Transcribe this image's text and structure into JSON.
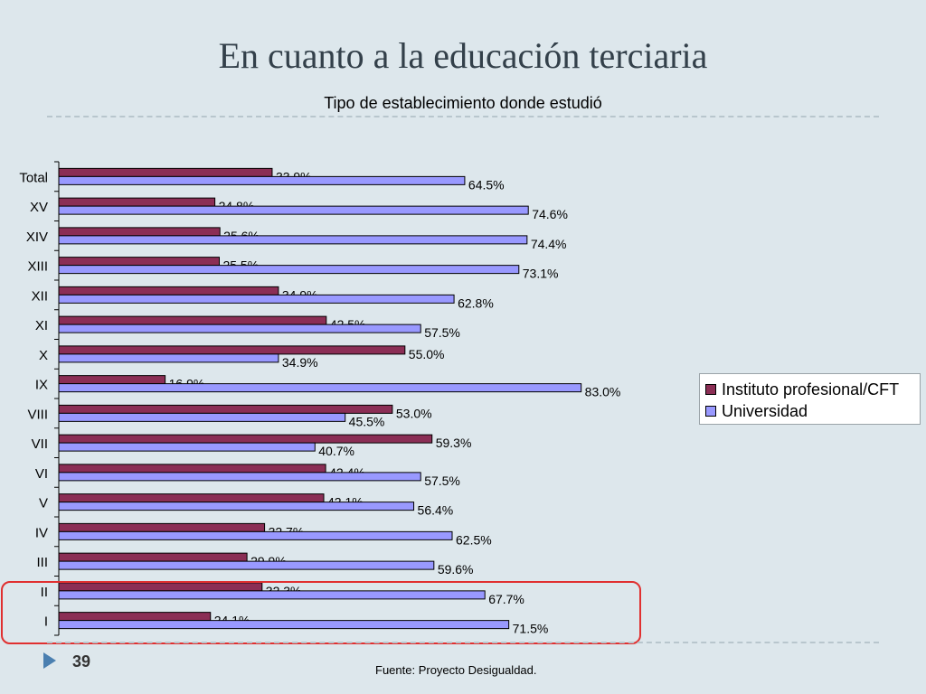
{
  "slide": {
    "title": "En cuanto a la educación terciaria",
    "page_number": "39",
    "source_note": "Fuente: Proyecto Desigualdad."
  },
  "colors": {
    "background": "#dde7ec",
    "series_1": "#8b2e55",
    "series_2": "#9999ff",
    "highlight": "#e03030"
  },
  "chart_data": {
    "type": "bar",
    "orientation": "horizontal",
    "title": "Tipo de establecimiento donde estudió",
    "xlabel": "",
    "ylabel": "",
    "xlim": [
      0,
      100
    ],
    "grid": false,
    "legend_position": "right",
    "categories": [
      "Total",
      "XV",
      "XIV",
      "XIII",
      "XII",
      "XI",
      "X",
      "IX",
      "VIII",
      "VII",
      "VI",
      "V",
      "IV",
      "III",
      "II",
      "I"
    ],
    "series": [
      {
        "name": "Instituto profesional/CFT",
        "values": [
          33.9,
          24.8,
          25.6,
          25.5,
          34.9,
          42.5,
          55.0,
          16.9,
          53.0,
          59.3,
          42.4,
          42.1,
          32.7,
          29.9,
          32.3,
          24.1
        ],
        "labels": [
          "33.9%",
          "24.8%",
          "25.6%",
          "25.5%",
          "34.9%",
          "42.5%",
          "55.0%",
          "16.9%",
          "53.0%",
          "59.3%",
          "42.4%",
          "42.1%",
          "32.7%",
          "29.9%",
          "32.3%",
          "24.1%"
        ]
      },
      {
        "name": "Universidad",
        "values": [
          64.5,
          74.6,
          74.4,
          73.1,
          62.8,
          57.5,
          34.9,
          83.0,
          45.5,
          40.7,
          57.5,
          56.4,
          62.5,
          59.6,
          67.7,
          71.5
        ],
        "labels": [
          "64.5%",
          "74.6%",
          "74.4%",
          "73.1%",
          "62.8%",
          "57.5%",
          "34.9%",
          "83.0%",
          "45.5%",
          "40.7%",
          "57.5%",
          "56.4%",
          "62.5%",
          "59.6%",
          "67.7%",
          "71.5%"
        ]
      }
    ],
    "highlighted_categories": [
      "II",
      "I"
    ]
  }
}
